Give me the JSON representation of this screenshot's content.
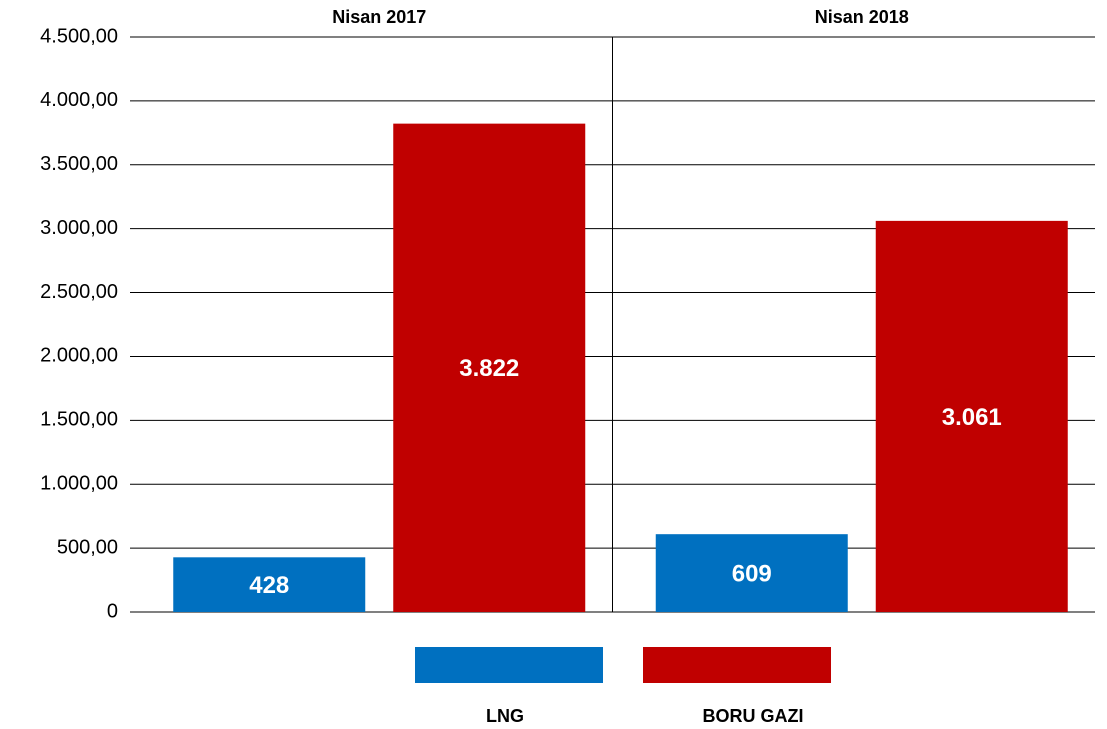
{
  "chart_data": {
    "type": "bar",
    "categories": [
      "Nisan 2017",
      "Nisan 2018"
    ],
    "series": [
      {
        "name": "LNG",
        "color": "#0070c0",
        "values": [
          428,
          609
        ],
        "value_labels": [
          "428",
          "609"
        ]
      },
      {
        "name": "BORU GAZI",
        "color": "#c00000",
        "values": [
          3822,
          3061
        ],
        "value_labels": [
          "3.822",
          "3.061"
        ]
      }
    ],
    "ylim": [
      0,
      4500
    ],
    "yticks": [
      0,
      {
        "value": 500,
        "label": "500,00"
      },
      {
        "value": 1000,
        "label": "1.000,00"
      },
      {
        "value": 1500,
        "label": "1.500,00"
      },
      {
        "value": 2000,
        "label": "2.000,00"
      },
      {
        "value": 2500,
        "label": "2.500,00"
      },
      {
        "value": 3000,
        "label": "3.000,00"
      },
      {
        "value": 3500,
        "label": "3.500,00"
      },
      {
        "value": 4000,
        "label": "4.000,00"
      },
      {
        "value": 4500,
        "label": "4.500,00"
      }
    ],
    "grid": true,
    "legend": "bottom"
  }
}
